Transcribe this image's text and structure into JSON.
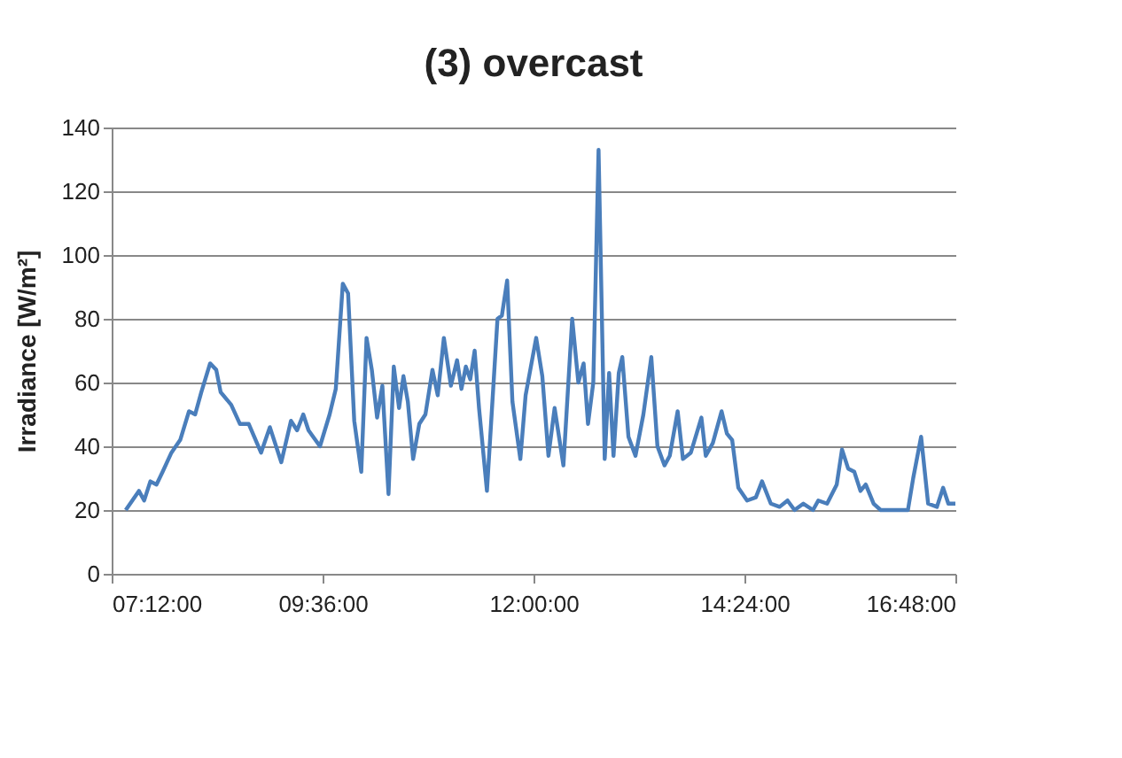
{
  "chart_data": {
    "type": "line",
    "title": "(3) overcast",
    "ylabel": "Irradiance [W/m²]",
    "xlim": [
      7.2,
      16.8
    ],
    "xticks": [
      {
        "value": 7.2,
        "label": "07:12:00"
      },
      {
        "value": 9.6,
        "label": "09:36:00"
      },
      {
        "value": 12,
        "label": "12:00:00"
      },
      {
        "value": 14.4,
        "label": "14:24:00"
      },
      {
        "value": 16.8,
        "label": "16:48:00"
      }
    ],
    "ylim": [
      0,
      140
    ],
    "yticks": [
      0,
      20,
      40,
      60,
      80,
      100,
      120,
      140
    ],
    "grid": "y",
    "marker": "none",
    "line_style": "solid",
    "x": [
      7.36,
      7.51,
      7.57,
      7.64,
      7.71,
      7.78,
      7.88,
      7.98,
      8.08,
      8.15,
      8.22,
      8.32,
      8.39,
      8.44,
      8.56,
      8.66,
      8.76,
      8.9,
      9.0,
      9.13,
      9.24,
      9.31,
      9.38,
      9.44,
      9.57,
      9.68,
      9.75,
      9.83,
      9.89,
      9.96,
      10.04,
      10.1,
      10.16,
      10.22,
      10.28,
      10.35,
      10.41,
      10.47,
      10.52,
      10.57,
      10.63,
      10.7,
      10.77,
      10.85,
      10.91,
      10.98,
      11.06,
      11.13,
      11.18,
      11.23,
      11.28,
      11.33,
      11.38,
      11.47,
      11.59,
      11.64,
      11.7,
      11.76,
      11.85,
      11.91,
      12.03,
      12.1,
      12.17,
      12.24,
      12.34,
      12.44,
      12.51,
      12.57,
      12.62,
      12.68,
      12.74,
      12.81,
      12.86,
      12.91,
      12.97,
      13.01,
      13.08,
      13.16,
      13.25,
      13.34,
      13.41,
      13.49,
      13.55,
      13.64,
      13.7,
      13.79,
      13.91,
      13.96,
      14.04,
      14.14,
      14.2,
      14.26,
      14.33,
      14.43,
      14.53,
      14.6,
      14.7,
      14.8,
      14.89,
      14.97,
      15.07,
      15.18,
      15.24,
      15.34,
      15.45,
      15.51,
      15.58,
      15.65,
      15.72,
      15.78,
      15.87,
      15.95,
      16.26,
      16.32,
      16.41,
      16.49,
      16.59,
      16.66,
      16.72,
      16.8
    ],
    "series": [
      {
        "color": "#4a7ebb",
        "values": [
          20,
          26,
          23,
          29,
          28,
          32,
          38,
          42,
          51,
          50,
          57,
          66,
          64,
          57,
          53,
          47,
          47,
          38,
          46,
          35,
          48,
          45,
          50,
          45,
          40,
          50,
          58,
          91,
          88,
          48,
          32,
          74,
          64,
          49,
          59,
          25,
          65,
          52,
          62,
          54,
          36,
          47,
          50,
          64,
          56,
          74,
          59,
          67,
          58,
          65,
          61,
          70,
          52,
          26,
          80,
          81,
          92,
          54,
          36,
          56,
          74,
          62,
          37,
          52,
          34,
          80,
          60,
          66,
          47,
          60,
          133,
          36,
          63,
          37,
          63,
          68,
          43,
          37,
          50,
          68,
          40,
          34,
          37,
          51,
          36,
          38,
          49,
          37,
          41,
          51,
          44,
          42,
          27,
          23,
          24,
          29,
          22,
          21,
          23,
          20,
          22,
          20,
          23,
          22,
          28,
          39,
          33,
          32,
          26,
          28,
          22,
          20,
          20,
          30,
          43,
          22,
          21,
          27,
          22,
          22
        ]
      }
    ]
  }
}
